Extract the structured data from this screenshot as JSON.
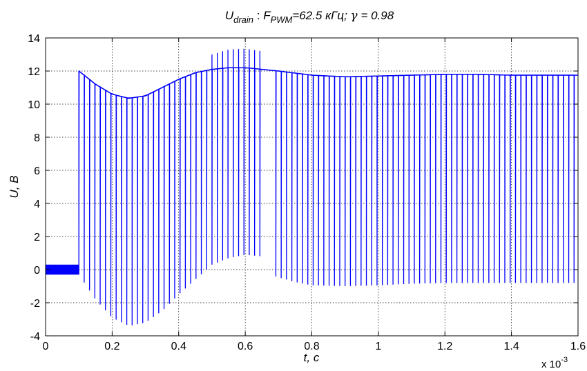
{
  "chart_data": {
    "type": "line",
    "title": {
      "sym_u": "U",
      "sub_drain": "drain",
      "sep": " : ",
      "sym_f": "F",
      "sub_pwm": "PWM",
      "rest_freq": "=62.5 кГц; ",
      "gamma": "γ",
      "rest_gamma": " = 0.98"
    },
    "xlabel": "t, c",
    "ylabel": "U, B",
    "x_multiplier": {
      "base": "x 10",
      "exp": "-3"
    },
    "xlim": [
      0,
      1.6
    ],
    "ylim": [
      -4,
      14
    ],
    "x_ticks": [
      "0",
      "0.2",
      "0.4",
      "0.6",
      "0.8",
      "1",
      "1.2",
      "1.4",
      "1.6"
    ],
    "y_ticks": [
      "-4",
      "-2",
      "0",
      "2",
      "4",
      "6",
      "8",
      "10",
      "12",
      "14"
    ],
    "grid": true,
    "series_color": "#0000ff",
    "pwm_frequency_khz": 62.5,
    "duty_cycle": 0.98,
    "series": [
      {
        "envelope_top": {
          "x": [
            0.1,
            0.15,
            0.2,
            0.25,
            0.3,
            0.35,
            0.4,
            0.45,
            0.5,
            0.55,
            0.6,
            0.65,
            0.7,
            0.8,
            0.9,
            1.0,
            1.1,
            1.2,
            1.3,
            1.4,
            1.6
          ],
          "y": [
            12.0,
            11.2,
            10.6,
            10.35,
            10.5,
            11.0,
            11.5,
            11.9,
            12.1,
            12.2,
            12.2,
            12.1,
            12.0,
            11.75,
            11.65,
            11.7,
            11.75,
            11.8,
            11.8,
            11.75,
            11.75
          ]
        },
        "envelope_bottom": {
          "x": [
            0.1,
            0.15,
            0.2,
            0.25,
            0.3,
            0.35,
            0.4,
            0.45,
            0.5,
            0.55,
            0.6,
            0.65,
            0.68,
            0.75,
            0.8,
            0.9,
            1.0,
            1.1,
            1.2,
            1.3,
            1.4,
            1.6
          ],
          "y": [
            -0.3,
            -1.8,
            -2.9,
            -3.4,
            -3.2,
            -2.5,
            -1.5,
            -0.6,
            0.3,
            0.7,
            0.9,
            0.8,
            -0.35,
            -0.75,
            -0.95,
            -1.0,
            -0.95,
            -0.85,
            -0.8,
            -0.8,
            -0.8,
            -0.8
          ]
        },
        "overshoot_peak": {
          "x": [
            0.5,
            0.55,
            0.6,
            0.65
          ],
          "y": [
            13.0,
            13.3,
            13.35,
            13.2
          ]
        },
        "initial_ripple": {
          "x_start": 0.0,
          "x_end": 0.1,
          "y_min": -0.3,
          "y_max": 0.3
        },
        "gap": {
          "x_start": 0.66,
          "x_end": 0.68
        }
      }
    ]
  }
}
